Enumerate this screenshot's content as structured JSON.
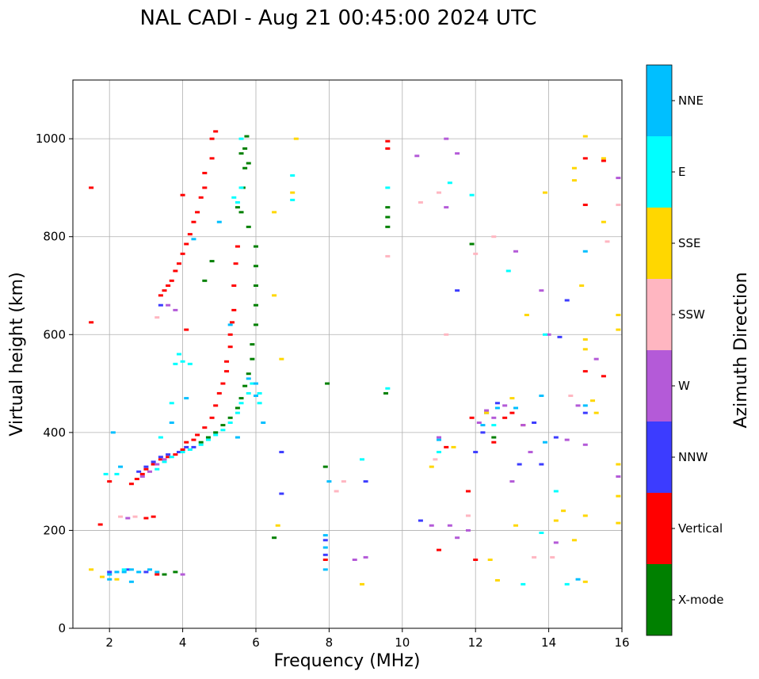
{
  "chart_data": {
    "type": "scatter",
    "title": "NAL CADI - Aug 21 00:45:00 2024 UTC",
    "xlabel": "Frequency (MHz)",
    "ylabel": "Virtual height (km)",
    "xlim": [
      1,
      16
    ],
    "ylim": [
      0,
      1120
    ],
    "xticks": [
      2,
      4,
      6,
      8,
      10,
      12,
      14,
      16
    ],
    "yticks": [
      0,
      200,
      400,
      600,
      800,
      1000
    ],
    "grid": true,
    "colorbar": {
      "title": "Azimuth Direction",
      "categories": [
        {
          "name": "X-mode",
          "color": "#008000"
        },
        {
          "name": "Vertical",
          "color": "#ff0000"
        },
        {
          "name": "NNW",
          "color": "#3c3cff"
        },
        {
          "name": "W",
          "color": "#b45ad8"
        },
        {
          "name": "SSW",
          "color": "#ffb6c1"
        },
        {
          "name": "SSE",
          "color": "#ffd700"
        },
        {
          "name": "E",
          "color": "#00ffff"
        },
        {
          "name": "NNE",
          "color": "#00bfff"
        }
      ]
    },
    "series": [
      {
        "name": "Vertical",
        "color": "#ff0000",
        "points": [
          [
            1.5,
            900
          ],
          [
            1.5,
            625
          ],
          [
            1.75,
            212
          ],
          [
            2.0,
            300
          ],
          [
            2.6,
            295
          ],
          [
            2.75,
            305
          ],
          [
            2.9,
            315
          ],
          [
            3.0,
            325
          ],
          [
            3.2,
            335
          ],
          [
            3.4,
            345
          ],
          [
            3.6,
            350
          ],
          [
            3.8,
            355
          ],
          [
            4.0,
            365
          ],
          [
            4.1,
            380
          ],
          [
            4.3,
            385
          ],
          [
            4.4,
            395
          ],
          [
            4.6,
            410
          ],
          [
            4.8,
            430
          ],
          [
            4.9,
            455
          ],
          [
            5.0,
            480
          ],
          [
            5.1,
            500
          ],
          [
            5.2,
            525
          ],
          [
            5.2,
            545
          ],
          [
            5.3,
            575
          ],
          [
            5.3,
            600
          ],
          [
            5.35,
            625
          ],
          [
            5.4,
            650
          ],
          [
            5.4,
            700
          ],
          [
            5.45,
            745
          ],
          [
            5.5,
            780
          ],
          [
            3.4,
            680
          ],
          [
            3.5,
            690
          ],
          [
            3.6,
            700
          ],
          [
            3.7,
            710
          ],
          [
            3.8,
            730
          ],
          [
            3.9,
            745
          ],
          [
            4.0,
            765
          ],
          [
            4.1,
            785
          ],
          [
            4.2,
            805
          ],
          [
            4.3,
            830
          ],
          [
            4.4,
            850
          ],
          [
            4.5,
            880
          ],
          [
            4.6,
            900
          ],
          [
            4.6,
            930
          ],
          [
            4.8,
            960
          ],
          [
            4.8,
            1000
          ],
          [
            4.9,
            1015
          ],
          [
            3.3,
            110
          ],
          [
            3.0,
            225
          ],
          [
            3.2,
            228
          ],
          [
            15.0,
            960
          ],
          [
            15.5,
            955
          ],
          [
            15.0,
            865
          ],
          [
            15.5,
            515
          ],
          [
            15.0,
            525
          ],
          [
            12.5,
            380
          ],
          [
            12.8,
            430
          ],
          [
            13.0,
            440
          ],
          [
            11.2,
            370
          ],
          [
            11.8,
            280
          ],
          [
            11.0,
            160
          ],
          [
            12.0,
            140
          ],
          [
            7.9,
            140
          ],
          [
            4.0,
            885
          ],
          [
            4.1,
            610
          ],
          [
            9.6,
            995
          ],
          [
            9.6,
            980
          ],
          [
            11.9,
            430
          ],
          [
            13.3,
            415
          ]
        ]
      },
      {
        "name": "X-mode",
        "color": "#008000",
        "points": [
          [
            4.5,
            380
          ],
          [
            4.7,
            390
          ],
          [
            4.9,
            400
          ],
          [
            5.1,
            415
          ],
          [
            5.3,
            430
          ],
          [
            5.5,
            450
          ],
          [
            5.6,
            470
          ],
          [
            5.7,
            495
          ],
          [
            5.8,
            520
          ],
          [
            5.9,
            550
          ],
          [
            5.9,
            580
          ],
          [
            6.0,
            620
          ],
          [
            6.0,
            660
          ],
          [
            6.0,
            700
          ],
          [
            6.0,
            740
          ],
          [
            6.0,
            780
          ],
          [
            5.8,
            820
          ],
          [
            5.6,
            850
          ],
          [
            5.5,
            860
          ],
          [
            5.65,
            900
          ],
          [
            5.7,
            940
          ],
          [
            5.7,
            980
          ],
          [
            5.75,
            1005
          ],
          [
            5.8,
            950
          ],
          [
            5.6,
            970
          ],
          [
            4.6,
            710
          ],
          [
            4.8,
            750
          ],
          [
            6.5,
            185
          ],
          [
            7.9,
            330
          ],
          [
            7.95,
            500
          ],
          [
            9.6,
            840
          ],
          [
            9.6,
            820
          ],
          [
            9.6,
            860
          ],
          [
            9.55,
            480
          ],
          [
            11.9,
            785
          ],
          [
            3.5,
            110
          ],
          [
            3.8,
            115
          ],
          [
            12.5,
            390
          ]
        ]
      },
      {
        "name": "NNW",
        "color": "#3c3cff",
        "points": [
          [
            2.8,
            320
          ],
          [
            3.0,
            330
          ],
          [
            3.2,
            340
          ],
          [
            3.4,
            350
          ],
          [
            3.6,
            355
          ],
          [
            3.9,
            360
          ],
          [
            4.1,
            370
          ],
          [
            3.4,
            660
          ],
          [
            4.3,
            370
          ],
          [
            6.7,
            275
          ],
          [
            6.7,
            360
          ],
          [
            7.9,
            180
          ],
          [
            7.9,
            150
          ],
          [
            9.0,
            300
          ],
          [
            11.5,
            690
          ],
          [
            12.3,
            440
          ],
          [
            12.6,
            460
          ],
          [
            13.2,
            335
          ],
          [
            13.8,
            335
          ],
          [
            14.2,
            390
          ],
          [
            14.5,
            670
          ],
          [
            14.3,
            595
          ],
          [
            15.0,
            440
          ],
          [
            12.2,
            400
          ],
          [
            2.0,
            115
          ],
          [
            2.5,
            120
          ],
          [
            3.0,
            115
          ],
          [
            13.6,
            420
          ],
          [
            12.0,
            360
          ],
          [
            10.5,
            220
          ]
        ]
      },
      {
        "name": "W",
        "color": "#b45ad8",
        "points": [
          [
            2.9,
            310
          ],
          [
            3.1,
            320
          ],
          [
            3.3,
            335
          ],
          [
            3.5,
            345
          ],
          [
            3.6,
            660
          ],
          [
            3.8,
            650
          ],
          [
            11.0,
            390
          ],
          [
            11.2,
            1000
          ],
          [
            10.8,
            210
          ],
          [
            11.3,
            210
          ],
          [
            11.5,
            185
          ],
          [
            12.1,
            420
          ],
          [
            12.3,
            445
          ],
          [
            12.5,
            430
          ],
          [
            12.8,
            455
          ],
          [
            13.1,
            770
          ],
          [
            13.3,
            415
          ],
          [
            13.5,
            360
          ],
          [
            13.8,
            690
          ],
          [
            14.2,
            175
          ],
          [
            14.5,
            385
          ],
          [
            14.8,
            455
          ],
          [
            15.0,
            375
          ],
          [
            15.3,
            550
          ],
          [
            15.9,
            920
          ],
          [
            15.9,
            310
          ],
          [
            9.0,
            145
          ],
          [
            8.7,
            140
          ],
          [
            11.2,
            860
          ],
          [
            11.5,
            970
          ],
          [
            10.4,
            965
          ],
          [
            11.8,
            200
          ],
          [
            13.0,
            300
          ],
          [
            14.0,
            600
          ],
          [
            2.5,
            225
          ],
          [
            4.0,
            110
          ]
        ]
      },
      {
        "name": "SSW",
        "color": "#ffb6c1",
        "points": [
          [
            11.0,
            890
          ],
          [
            10.5,
            870
          ],
          [
            11.2,
            600
          ],
          [
            11.8,
            230
          ],
          [
            12.5,
            800
          ],
          [
            13.6,
            145
          ],
          [
            14.1,
            145
          ],
          [
            14.6,
            475
          ],
          [
            15.6,
            790
          ],
          [
            15.9,
            865
          ],
          [
            10.9,
            345
          ],
          [
            12.0,
            765
          ],
          [
            8.2,
            280
          ],
          [
            8.4,
            300
          ],
          [
            2.3,
            228
          ],
          [
            2.7,
            228
          ],
          [
            9.6,
            760
          ],
          [
            3.3,
            635
          ]
        ]
      },
      {
        "name": "SSE",
        "color": "#ffd700",
        "points": [
          [
            6.5,
            680
          ],
          [
            6.5,
            850
          ],
          [
            7.0,
            890
          ],
          [
            6.6,
            210
          ],
          [
            10.8,
            330
          ],
          [
            11.4,
            370
          ],
          [
            12.3,
            440
          ],
          [
            12.6,
            98
          ],
          [
            13.0,
            470
          ],
          [
            13.1,
            210
          ],
          [
            13.4,
            640
          ],
          [
            13.9,
            890
          ],
          [
            14.2,
            220
          ],
          [
            14.4,
            240
          ],
          [
            14.7,
            940
          ],
          [
            14.7,
            915
          ],
          [
            14.9,
            700
          ],
          [
            15.0,
            570
          ],
          [
            15.0,
            590
          ],
          [
            15.2,
            465
          ],
          [
            15.3,
            440
          ],
          [
            15.5,
            960
          ],
          [
            15.5,
            830
          ],
          [
            15.9,
            335
          ],
          [
            15.9,
            270
          ],
          [
            15.9,
            215
          ],
          [
            15.9,
            640
          ],
          [
            15.9,
            610
          ],
          [
            15.0,
            1005
          ],
          [
            15.0,
            230
          ],
          [
            15.0,
            95
          ],
          [
            8.9,
            90
          ],
          [
            7.1,
            1000
          ],
          [
            1.8,
            105
          ],
          [
            1.5,
            120
          ],
          [
            6.7,
            550
          ],
          [
            12.4,
            140
          ],
          [
            14.7,
            180
          ],
          [
            2.2,
            100
          ]
        ]
      },
      {
        "name": "E",
        "color": "#00ffff",
        "points": [
          [
            3.3,
            325
          ],
          [
            3.5,
            340
          ],
          [
            3.7,
            350
          ],
          [
            4.0,
            360
          ],
          [
            4.2,
            365
          ],
          [
            4.5,
            375
          ],
          [
            4.7,
            385
          ],
          [
            4.9,
            395
          ],
          [
            5.1,
            405
          ],
          [
            5.3,
            420
          ],
          [
            5.5,
            440
          ],
          [
            5.6,
            460
          ],
          [
            5.8,
            480
          ],
          [
            5.9,
            500
          ],
          [
            6.1,
            480
          ],
          [
            6.1,
            460
          ],
          [
            5.6,
            1000
          ],
          [
            5.4,
            880
          ],
          [
            5.5,
            870
          ],
          [
            5.6,
            900
          ],
          [
            7.0,
            925
          ],
          [
            7.0,
            875
          ],
          [
            9.6,
            900
          ],
          [
            9.6,
            490
          ],
          [
            8.9,
            345
          ],
          [
            11.0,
            360
          ],
          [
            11.3,
            910
          ],
          [
            11.9,
            885
          ],
          [
            12.5,
            415
          ],
          [
            12.9,
            730
          ],
          [
            13.3,
            90
          ],
          [
            13.8,
            195
          ],
          [
            14.5,
            90
          ],
          [
            13.9,
            600
          ],
          [
            14.2,
            280
          ],
          [
            4.0,
            545
          ],
          [
            3.9,
            560
          ],
          [
            3.8,
            540
          ],
          [
            3.7,
            460
          ],
          [
            4.2,
            540
          ],
          [
            1.9,
            315
          ],
          [
            2.2,
            315
          ],
          [
            2.4,
            120
          ],
          [
            3.4,
            390
          ]
        ]
      },
      {
        "name": "NNE",
        "color": "#00bfff",
        "points": [
          [
            2.0,
            110
          ],
          [
            2.2,
            115
          ],
          [
            2.4,
            115
          ],
          [
            2.6,
            120
          ],
          [
            2.8,
            115
          ],
          [
            3.1,
            120
          ],
          [
            3.3,
            115
          ],
          [
            2.1,
            400
          ],
          [
            2.3,
            330
          ],
          [
            3.7,
            420
          ],
          [
            4.1,
            470
          ],
          [
            5.8,
            510
          ],
          [
            5.5,
            390
          ],
          [
            6.0,
            475
          ],
          [
            6.2,
            420
          ],
          [
            6.0,
            500
          ],
          [
            7.9,
            165
          ],
          [
            7.9,
            190
          ],
          [
            7.9,
            120
          ],
          [
            8.0,
            300
          ],
          [
            11.0,
            385
          ],
          [
            12.2,
            415
          ],
          [
            12.6,
            450
          ],
          [
            13.1,
            450
          ],
          [
            13.8,
            475
          ],
          [
            13.9,
            380
          ],
          [
            14.8,
            100
          ],
          [
            15.0,
            770
          ],
          [
            15.0,
            455
          ],
          [
            2.0,
            100
          ],
          [
            2.6,
            95
          ],
          [
            4.3,
            795
          ],
          [
            5.0,
            830
          ],
          [
            5.3,
            620
          ]
        ]
      }
    ]
  }
}
